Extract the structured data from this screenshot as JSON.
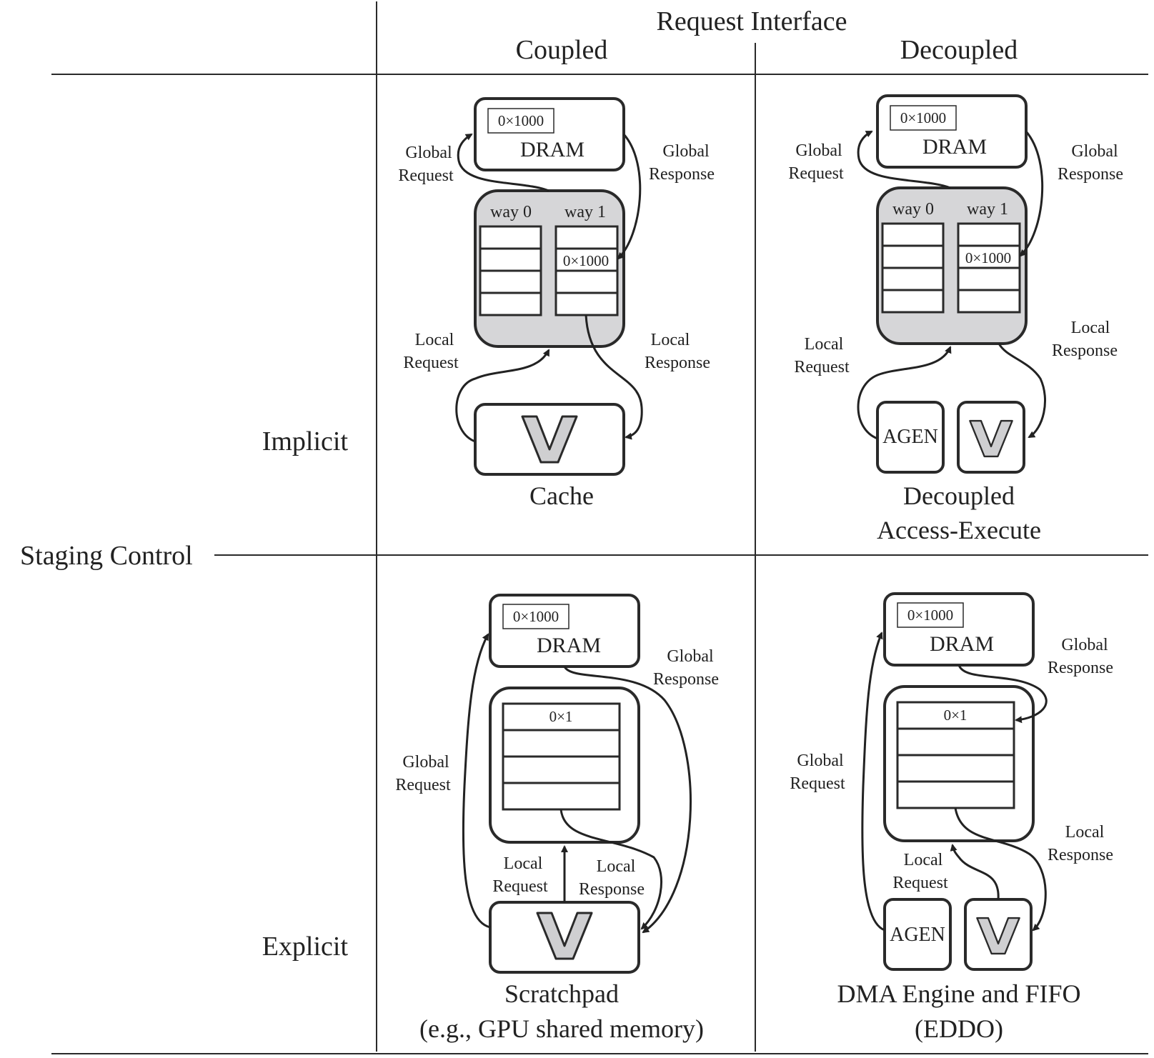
{
  "header": {
    "request_interface": "Request Interface",
    "coupled": "Coupled",
    "decoupled": "Decoupled"
  },
  "rows": {
    "staging_control": "Staging Control",
    "implicit": "Implicit",
    "explicit": "Explicit"
  },
  "common": {
    "dram": "DRAM",
    "addr_dram": "0×1000",
    "addr_line": "0×1000",
    "addr_spad": "0×1",
    "way0": "way 0",
    "way1": "way 1",
    "agen": "AGEN",
    "global": "Global",
    "local": "Local",
    "request": "Request",
    "response": "Response"
  },
  "captions": {
    "cache": "Cache",
    "dae_1": "Decoupled",
    "dae_2": "Access-Execute",
    "spad_1": "Scratchpad",
    "spad_2": "(e.g., GPU shared memory)",
    "dma_1": "DMA Engine and FIFO",
    "dma_2": "(EDDO)"
  }
}
